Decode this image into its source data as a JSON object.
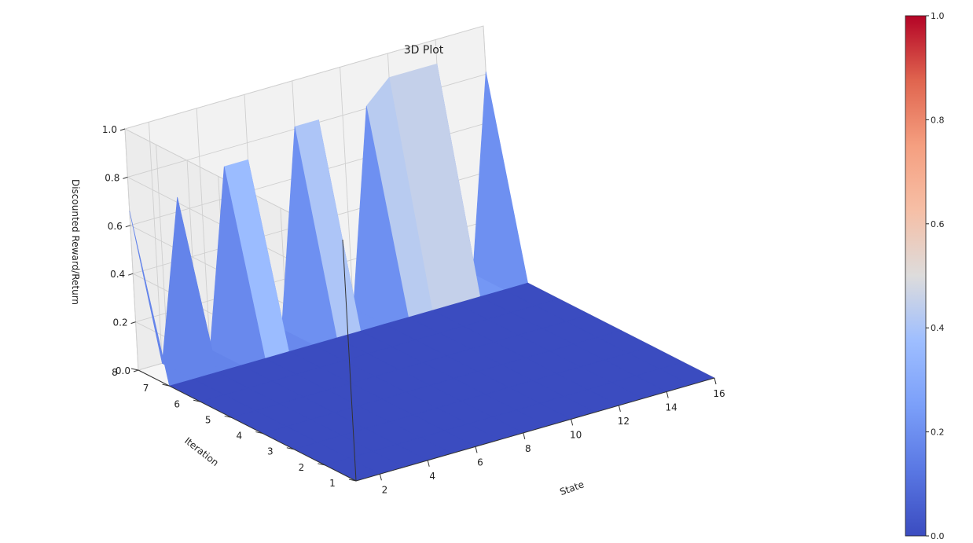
{
  "chart_data": {
    "type": "surface3d",
    "title": "3D Plot",
    "xlabel": "State",
    "ylabel": "Iteration",
    "zlabel": "Discounted Reward/Return",
    "x_ticks": [
      2,
      4,
      6,
      8,
      10,
      12,
      14,
      16
    ],
    "y_ticks": [
      1,
      2,
      3,
      4,
      5,
      6,
      7,
      8
    ],
    "z_ticks": [
      "0.0",
      "0.2",
      "0.4",
      "0.6",
      "0.8",
      "1.0"
    ],
    "xlim": [
      1,
      16
    ],
    "ylim": [
      1,
      8
    ],
    "zlim": [
      0,
      1
    ],
    "grid": true,
    "colormap": "coolwarm",
    "colorbar": {
      "ticks": [
        "0.0",
        "0.2",
        "0.4",
        "0.6",
        "0.8",
        "1.0"
      ],
      "range": [
        0,
        1
      ]
    },
    "states": [
      1,
      2,
      3,
      4,
      5,
      6,
      7,
      8,
      9,
      10,
      11,
      12,
      13,
      14,
      15,
      16
    ],
    "iterations": [
      1,
      2,
      3,
      4,
      5,
      6,
      7,
      8
    ],
    "values": [
      [
        0,
        0,
        0,
        0,
        0,
        0,
        0,
        0,
        0,
        0,
        0,
        0,
        0,
        0,
        0,
        0
      ],
      [
        0,
        0,
        0,
        0,
        0,
        0,
        0,
        0,
        0,
        0,
        0,
        0,
        0,
        0,
        0,
        0
      ],
      [
        0,
        0,
        0,
        0,
        0,
        0,
        0,
        0,
        0,
        0,
        0,
        0,
        0,
        0,
        0,
        0
      ],
      [
        0,
        0,
        0,
        0,
        0,
        0,
        0,
        0,
        0,
        0,
        0,
        0,
        0,
        0,
        0,
        0
      ],
      [
        0,
        0,
        0,
        0,
        0,
        0,
        0,
        0,
        0,
        0,
        0,
        0,
        0,
        0,
        0,
        0
      ],
      [
        0,
        0,
        0,
        0,
        0,
        0,
        0,
        0,
        0,
        0,
        0,
        0,
        0,
        0,
        0,
        0
      ],
      [
        0,
        0,
        0,
        0,
        0,
        0,
        0,
        0,
        0,
        0,
        0,
        0,
        0,
        0,
        0,
        0
      ],
      [
        0.66,
        0,
        0.66,
        0,
        0.73,
        0.73,
        0,
        0.81,
        0.81,
        0,
        0.81,
        0.9,
        0.9,
        0.9,
        0,
        0.81
      ]
    ],
    "value_precision": "approx"
  }
}
